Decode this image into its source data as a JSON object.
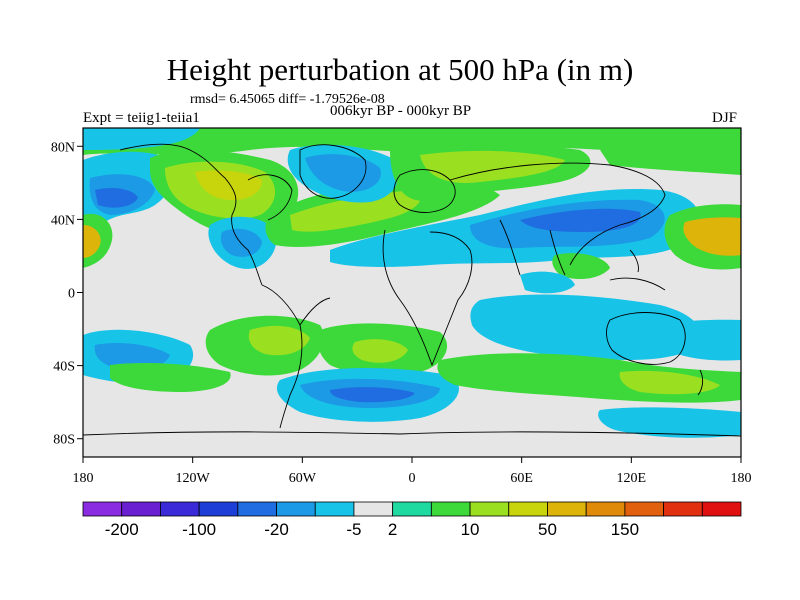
{
  "title": "Height perturbation at 500 hPa (in m)",
  "stats_line": "rmsd= 6.45065 diff= -1.79526e-08",
  "experiment": "Expt = teiig1-teiia1",
  "period": "006kyr BP - 000kyr BP",
  "season": "DJF",
  "map": {
    "projection": "cylindrical-equidistant",
    "lon_range": [
      -180,
      180
    ],
    "lat_range": [
      -90,
      90
    ],
    "lon_ticks": [
      "180",
      "120W",
      "60W",
      "0",
      "60E",
      "120E",
      "180"
    ],
    "lat_ticks": [
      "80N",
      "40N",
      "0",
      "40S",
      "80S"
    ]
  },
  "colorbar": {
    "labels": [
      "-200",
      "-100",
      "-20",
      "-5",
      "2",
      "10",
      "50",
      "150"
    ],
    "colors": [
      "#8a2be2",
      "#6a1fd0",
      "#3a2ad8",
      "#1e3ed8",
      "#1f6de0",
      "#1c9ae6",
      "#18c3e8",
      "#e6e6e6",
      "#1ed9a0",
      "#3dd93a",
      "#9be020",
      "#c8d40c",
      "#ddb50a",
      "#e08a0a",
      "#e0600e",
      "#e03010",
      "#e01010"
    ]
  }
}
